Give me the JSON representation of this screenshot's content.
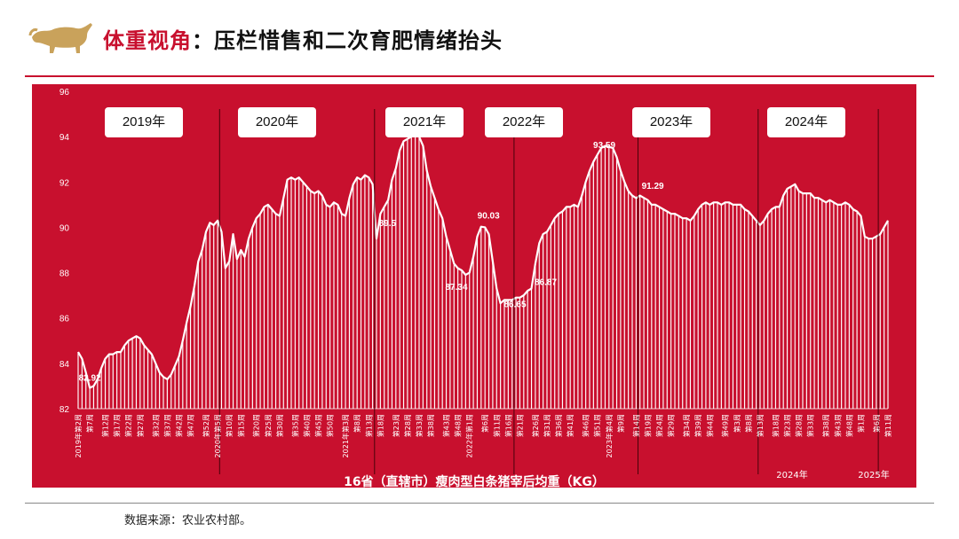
{
  "header": {
    "title_highlight": "体重视角",
    "title_rest": "：压栏惜售和二次育肥情绪抬头",
    "logo_icon": "bull-icon",
    "accent_color": "#c8102e"
  },
  "footer": {
    "source": "数据来源：农业农村部。"
  },
  "year_tags": [
    "2019年",
    "2020年",
    "2021年",
    "2022年",
    "2023年",
    "2024年"
  ],
  "chart_data": {
    "type": "area",
    "xlabel": "16省（直辖市）瘦肉型白条猪宰后均重（KG）",
    "ylabel": "",
    "ylim": [
      82,
      96
    ],
    "yticks": [
      82,
      84,
      86,
      88,
      90,
      92,
      94,
      96
    ],
    "background_color": "#c8102e",
    "series_color": "#ffffff",
    "grid": false,
    "x_tick_labels": [
      "2019年第2周",
      "第7周",
      "第12周",
      "第17周",
      "第22周",
      "第27周",
      "第32周",
      "第37周",
      "第42周",
      "第47周",
      "第52周",
      "2020年第5周",
      "第10周",
      "第15周",
      "第20周",
      "第25周",
      "第30周",
      "第35周",
      "第40周",
      "第45周",
      "第50周",
      "2021年第3周",
      "第8周",
      "第13周",
      "第18周",
      "第23周",
      "第28周",
      "第33周",
      "第38周",
      "第43周",
      "第48周",
      "2022年第1周",
      "第6周",
      "第11周",
      "第16周",
      "第21周",
      "第26周",
      "第31周",
      "第36周",
      "第41周",
      "第46周",
      "第51周",
      "2023年第4周",
      "第9周",
      "第14周",
      "第19周",
      "第24周",
      "第29周",
      "第34周",
      "第39周",
      "第44周",
      "第49周",
      "第3周",
      "第8周",
      "第13周",
      "第18周",
      "第23周",
      "第28周",
      "第33周",
      "第38周",
      "第43周",
      "第48周",
      "第1周",
      "第6周",
      "第11周"
    ],
    "x_group_labels": [
      "2024年",
      "2025年"
    ],
    "series": [
      {
        "values": [
          84.5,
          84.2,
          83.6,
          82.92,
          83.0,
          83.3,
          83.8,
          84.2,
          84.4,
          84.4,
          84.5,
          84.5,
          84.8,
          85.0,
          85.1,
          85.2,
          85.1,
          84.8,
          84.6,
          84.4,
          84.0,
          83.6,
          83.4,
          83.3,
          83.5,
          83.9,
          84.3,
          85.0,
          85.8,
          86.5,
          87.4,
          88.5,
          89.0,
          89.8,
          90.2,
          90.1,
          90.3,
          89.8,
          88.2,
          88.5,
          89.7,
          88.6,
          89.0,
          88.7,
          89.5,
          90.0,
          90.4,
          90.6,
          90.9,
          91.0,
          90.8,
          90.6,
          90.5,
          91.3,
          92.1,
          92.2,
          92.1,
          92.2,
          92.0,
          91.8,
          91.6,
          91.5,
          91.6,
          91.4,
          91.0,
          90.9,
          91.1,
          91.0,
          90.6,
          90.5,
          91.3,
          91.9,
          92.2,
          92.1,
          92.3,
          92.2,
          91.9,
          89.5,
          90.6,
          90.9,
          91.2,
          92.1,
          92.6,
          93.4,
          93.8,
          93.9,
          94.0,
          94.15,
          94.0,
          93.6,
          92.5,
          91.8,
          91.3,
          90.8,
          90.4,
          89.6,
          89.0,
          88.4,
          88.2,
          88.1,
          87.9,
          88.0,
          88.7,
          89.6,
          90.03,
          90.0,
          89.7,
          88.5,
          87.3,
          86.65,
          86.8,
          86.8,
          86.8,
          86.9,
          86.9,
          87.0,
          87.2,
          87.3,
          88.4,
          89.3,
          89.7,
          89.8,
          90.1,
          90.4,
          90.6,
          90.7,
          90.9,
          90.9,
          91.0,
          90.9,
          91.4,
          92.0,
          92.5,
          92.9,
          93.2,
          93.5,
          93.59,
          93.55,
          93.5,
          93.1,
          92.5,
          92.0,
          91.6,
          91.4,
          91.29,
          91.4,
          91.3,
          91.2,
          91.0,
          91.0,
          90.9,
          90.8,
          90.7,
          90.6,
          90.6,
          90.5,
          90.4,
          90.4,
          90.3,
          90.5,
          90.8,
          91.0,
          91.1,
          91.0,
          91.1,
          91.1,
          91.0,
          91.1,
          91.1,
          91.0,
          91.0,
          91.0,
          90.8,
          90.7,
          90.5,
          90.3,
          90.1,
          90.3,
          90.6,
          90.8,
          90.9,
          90.9,
          91.4,
          91.7,
          91.8,
          91.9,
          91.6,
          91.5,
          91.5,
          91.5,
          91.3,
          91.3,
          91.2,
          91.1,
          91.2,
          91.1,
          91.0,
          91.0,
          91.1,
          91.0,
          90.8,
          90.7,
          90.5,
          89.6,
          89.5,
          89.5,
          89.6,
          89.7,
          90.0,
          90.3
        ]
      }
    ],
    "annotations": [
      {
        "label": "82.92",
        "value": 82.92
      },
      {
        "label": "94.15",
        "value": 94.15
      },
      {
        "label": "89.5",
        "value": 89.5
      },
      {
        "label": "87.34",
        "value": 87.34
      },
      {
        "label": "90.03",
        "value": 90.03
      },
      {
        "label": "86.65",
        "value": 86.65
      },
      {
        "label": "86.87",
        "value": 86.87
      },
      {
        "label": "93.59",
        "value": 93.59
      },
      {
        "label": "91.29",
        "value": 91.29
      }
    ]
  }
}
